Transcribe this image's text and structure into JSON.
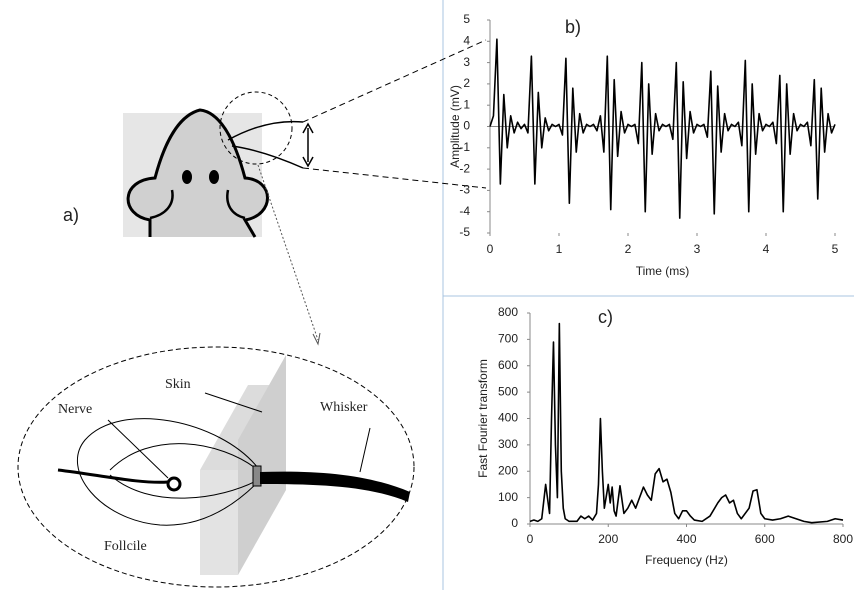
{
  "diagram": {
    "panel_label": "a)",
    "nerve": "Nerve",
    "skin": "Skin",
    "whisker": "Whisker",
    "follicle": "Follcile"
  },
  "chart_data": [
    {
      "type": "line",
      "title": "b)",
      "x_label": "Time (ms)",
      "y_label": "Amplitude (mV)",
      "color": "#000000",
      "xlim": [
        0,
        5
      ],
      "xticks": [
        0,
        1,
        2,
        3,
        4,
        5
      ],
      "ylim": [
        -5,
        5
      ],
      "yticks": [
        -5,
        -4,
        -3,
        -2,
        -1,
        0,
        1,
        2,
        3,
        4,
        5
      ],
      "x": [
        0,
        0.05,
        0.1,
        0.15,
        0.2,
        0.25,
        0.3,
        0.35,
        0.4,
        0.45,
        0.5,
        0.55,
        0.6,
        0.65,
        0.7,
        0.75,
        0.8,
        0.85,
        0.9,
        0.95,
        1,
        1.05,
        1.1,
        1.15,
        1.2,
        1.25,
        1.3,
        1.35,
        1.4,
        1.45,
        1.5,
        1.55,
        1.6,
        1.65,
        1.7,
        1.75,
        1.8,
        1.85,
        1.9,
        1.95,
        2,
        2.05,
        2.1,
        2.15,
        2.2,
        2.25,
        2.3,
        2.35,
        2.4,
        2.45,
        2.5,
        2.55,
        2.6,
        2.65,
        2.7,
        2.75,
        2.8,
        2.85,
        2.9,
        2.95,
        3,
        3.05,
        3.1,
        3.15,
        3.2,
        3.25,
        3.3,
        3.35,
        3.4,
        3.45,
        3.5,
        3.55,
        3.6,
        3.65,
        3.7,
        3.75,
        3.8,
        3.85,
        3.9,
        3.95,
        4,
        4.05,
        4.1,
        4.15,
        4.2,
        4.25,
        4.3,
        4.35,
        4.4,
        4.45,
        4.5,
        4.55,
        4.6,
        4.65,
        4.7,
        4.75,
        4.8,
        4.85,
        4.9,
        4.95,
        5
      ],
      "values": [
        0,
        0.5,
        4.1,
        -2.7,
        1.5,
        -1,
        0.5,
        -0.3,
        0.2,
        -0.1,
        0.1,
        -0.3,
        3.3,
        -2.7,
        1.6,
        -1,
        0.4,
        -0.2,
        0.1,
        0,
        0.1,
        -0.4,
        3.2,
        -3.6,
        1.8,
        -1.2,
        0.6,
        -0.3,
        0.1,
        0,
        0.1,
        -0.2,
        0.5,
        -1.2,
        3.3,
        -3.9,
        2.2,
        -1.4,
        0.7,
        -0.3,
        0.1,
        0,
        0.1,
        -0.8,
        3,
        -4,
        2,
        -1.3,
        0.6,
        -0.2,
        0.1,
        0,
        0.1,
        -0.6,
        3,
        -4.3,
        2.1,
        -1.5,
        0.7,
        -0.3,
        0.1,
        0,
        0.1,
        -0.5,
        2.6,
        -4.1,
        1.9,
        -1.2,
        0.6,
        -0.2,
        0.1,
        0,
        0.2,
        -0.9,
        3.1,
        -4,
        2,
        -1.3,
        0.6,
        -0.2,
        0.1,
        0,
        0.2,
        -0.8,
        2.4,
        -4,
        2,
        -1.3,
        0.6,
        -0.2,
        0.1,
        0,
        0.2,
        -0.9,
        2.2,
        -3.4,
        1.8,
        -1.2,
        0.6,
        -0.3,
        0.1
      ]
    },
    {
      "type": "line",
      "title": "c)",
      "x_label": "Frequency (Hz)",
      "y_label": "Fast Fourier transform",
      "color": "#000000",
      "xlim": [
        0,
        800
      ],
      "xticks": [
        0,
        200,
        400,
        600,
        800
      ],
      "ylim": [
        0,
        800
      ],
      "yticks": [
        0,
        100,
        200,
        300,
        400,
        500,
        600,
        700,
        800
      ],
      "x": [
        0,
        10,
        20,
        30,
        40,
        50,
        55,
        60,
        65,
        70,
        75,
        80,
        85,
        90,
        100,
        120,
        130,
        140,
        150,
        160,
        170,
        175,
        180,
        185,
        190,
        200,
        205,
        210,
        215,
        220,
        230,
        240,
        250,
        260,
        270,
        280,
        290,
        300,
        310,
        320,
        330,
        340,
        350,
        360,
        370,
        380,
        390,
        400,
        410,
        420,
        440,
        460,
        480,
        490,
        500,
        510,
        520,
        530,
        540,
        560,
        570,
        580,
        590,
        600,
        620,
        640,
        660,
        680,
        700,
        720,
        760,
        780,
        800
      ],
      "values": [
        10,
        15,
        10,
        20,
        150,
        40,
        400,
        690,
        300,
        100,
        760,
        200,
        60,
        20,
        10,
        10,
        30,
        20,
        30,
        15,
        40,
        150,
        400,
        200,
        60,
        150,
        80,
        140,
        50,
        30,
        145,
        40,
        60,
        90,
        60,
        100,
        140,
        110,
        90,
        190,
        210,
        160,
        170,
        120,
        40,
        20,
        50,
        50,
        30,
        15,
        10,
        30,
        80,
        100,
        110,
        80,
        90,
        40,
        20,
        60,
        125,
        130,
        40,
        20,
        15,
        20,
        30,
        20,
        10,
        5,
        10,
        20,
        15
      ]
    }
  ]
}
